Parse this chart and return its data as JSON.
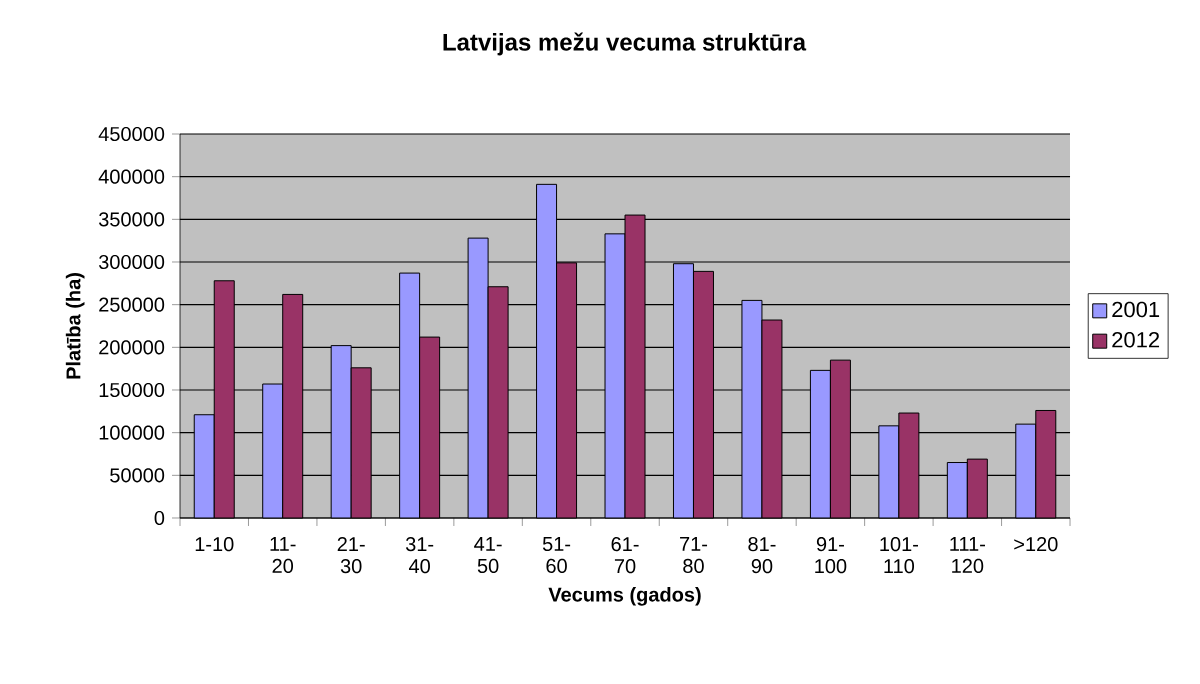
{
  "chart_data": {
    "type": "bar",
    "title": "Latvijas mežu vecuma struktūra",
    "xlabel": "Vecums (gados)",
    "ylabel": "Platība (ha)",
    "categories": [
      "1-10",
      "11-20",
      "21-30",
      "31-40",
      "41-50",
      "51-60",
      "61-70",
      "71-80",
      "81-90",
      "91-100",
      "101-110",
      "111-120",
      ">120"
    ],
    "series": [
      {
        "name": "2001",
        "color": "#9999ff",
        "values": [
          121000,
          157000,
          202000,
          287000,
          328000,
          391000,
          333000,
          298000,
          255000,
          173000,
          108000,
          65000,
          110000
        ]
      },
      {
        "name": "2012",
        "color": "#993366",
        "values": [
          278000,
          262000,
          176000,
          212000,
          271000,
          299000,
          355000,
          289000,
          232000,
          185000,
          123000,
          69000,
          126000
        ]
      }
    ],
    "ylim": [
      0,
      450000
    ],
    "yticks": [
      0,
      50000,
      100000,
      150000,
      200000,
      250000,
      300000,
      350000,
      400000,
      450000
    ],
    "grid": "y",
    "legend": "right"
  }
}
